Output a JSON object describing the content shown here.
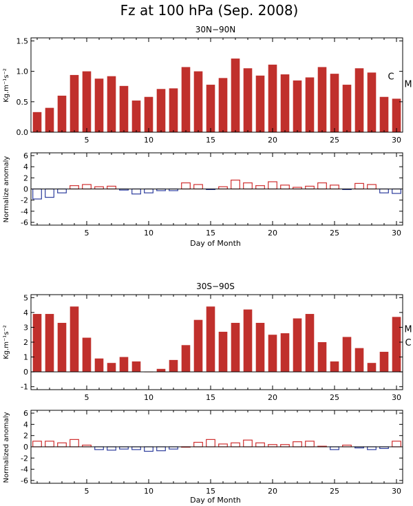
{
  "figure": {
    "title": "Fz at 100 hPa (Sep. 2008)",
    "colors": {
      "bar": "#c0302c",
      "positive": "#d03030",
      "negative": "#2c3c9c",
      "axis": "#000000"
    }
  },
  "chart_data": [
    {
      "type": "bar",
      "title": "30N−90N",
      "ylabel": "Kg.m⁻¹s⁻²",
      "xlabel": "",
      "x": [
        1,
        2,
        3,
        4,
        5,
        6,
        7,
        8,
        9,
        10,
        11,
        12,
        13,
        14,
        15,
        16,
        17,
        18,
        19,
        20,
        21,
        22,
        23,
        24,
        25,
        26,
        27,
        28,
        29,
        30
      ],
      "values": [
        0.33,
        0.4,
        0.6,
        0.94,
        1.0,
        0.88,
        0.92,
        0.76,
        0.52,
        0.58,
        0.71,
        0.72,
        1.07,
        1.0,
        0.78,
        0.89,
        1.21,
        1.05,
        0.93,
        1.11,
        0.95,
        0.85,
        0.9,
        1.07,
        0.96,
        0.78,
        1.05,
        0.98,
        0.58,
        0.55
      ],
      "xlim": [
        0.5,
        30.5
      ],
      "ylim": [
        0,
        1.55
      ],
      "yticks": [
        0.0,
        0.5,
        1.0,
        1.5
      ],
      "ytick_labels": [
        "0.0",
        "0.5",
        "1.0",
        "1.5"
      ],
      "xticks": [
        5,
        10,
        15,
        20,
        25,
        30
      ],
      "annotations": [
        {
          "text": "C",
          "y": 0.92
        },
        {
          "text": "M",
          "y": 0.8
        }
      ]
    },
    {
      "type": "bar",
      "title": "",
      "ylabel": "Normalize anomaly",
      "xlabel": "Day of Month",
      "x": [
        1,
        2,
        3,
        4,
        5,
        6,
        7,
        8,
        9,
        10,
        11,
        12,
        13,
        14,
        15,
        16,
        17,
        18,
        19,
        20,
        21,
        22,
        23,
        24,
        25,
        26,
        27,
        28,
        29,
        30
      ],
      "values": [
        -1.8,
        -1.5,
        -0.7,
        0.6,
        0.8,
        0.4,
        0.5,
        -0.2,
        -0.9,
        -0.7,
        -0.3,
        -0.3,
        1.1,
        0.8,
        -0.1,
        0.4,
        1.6,
        1.1,
        0.6,
        1.3,
        0.7,
        0.3,
        0.5,
        1.1,
        0.7,
        -0.1,
        1.0,
        0.8,
        -0.7,
        -0.8
      ],
      "xlim": [
        0.5,
        30.5
      ],
      "ylim": [
        -6.5,
        6.5
      ],
      "yticks": [
        -6,
        -4,
        -2,
        0,
        2,
        4,
        6
      ],
      "xticks": [
        5,
        10,
        15,
        20,
        25,
        30
      ],
      "style": "outline"
    },
    {
      "type": "bar",
      "title": "30S−90S",
      "ylabel": "Kg.m⁻¹s⁻²",
      "xlabel": "",
      "x": [
        1,
        2,
        3,
        4,
        5,
        6,
        7,
        8,
        9,
        10,
        11,
        12,
        13,
        14,
        15,
        16,
        17,
        18,
        19,
        20,
        21,
        22,
        23,
        24,
        25,
        26,
        27,
        28,
        29,
        30
      ],
      "values": [
        3.9,
        3.9,
        3.3,
        4.4,
        2.3,
        0.9,
        0.6,
        1.0,
        0.7,
        0.0,
        0.2,
        0.8,
        1.8,
        3.5,
        4.4,
        2.7,
        3.3,
        4.2,
        3.3,
        2.5,
        2.6,
        3.6,
        3.9,
        2.0,
        0.7,
        2.35,
        1.6,
        0.6,
        1.35,
        3.7
      ],
      "xlim": [
        0.5,
        30.5
      ],
      "ylim": [
        -1.2,
        5.2
      ],
      "yticks": [
        -1,
        0,
        1,
        2,
        3,
        4,
        5
      ],
      "xticks": [
        5,
        10,
        15,
        20,
        25,
        30
      ],
      "annotations": [
        {
          "text": "M",
          "y": 2.9
        },
        {
          "text": "C",
          "y": 2.0
        }
      ]
    },
    {
      "type": "bar",
      "title": "",
      "ylabel": "Normalized anomaly",
      "xlabel": "Day of Month",
      "x": [
        1,
        2,
        3,
        4,
        5,
        6,
        7,
        8,
        9,
        10,
        11,
        12,
        13,
        14,
        15,
        16,
        17,
        18,
        19,
        20,
        21,
        22,
        23,
        24,
        25,
        26,
        27,
        28,
        29,
        30
      ],
      "values": [
        1.0,
        1.0,
        0.7,
        1.3,
        0.3,
        -0.5,
        -0.6,
        -0.4,
        -0.5,
        -0.8,
        -0.7,
        -0.4,
        0.0,
        0.8,
        1.3,
        0.5,
        0.7,
        1.2,
        0.7,
        0.4,
        0.4,
        0.9,
        1.0,
        0.1,
        -0.5,
        0.3,
        -0.2,
        -0.5,
        -0.3,
        1.0
      ],
      "xlim": [
        0.5,
        30.5
      ],
      "ylim": [
        -6.5,
        6.5
      ],
      "yticks": [
        -6,
        -4,
        -2,
        0,
        2,
        4,
        6
      ],
      "xticks": [
        5,
        10,
        15,
        20,
        25,
        30
      ],
      "style": "outline"
    }
  ]
}
